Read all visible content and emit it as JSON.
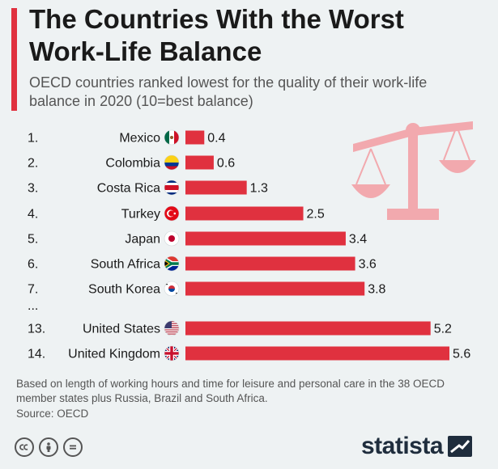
{
  "header": {
    "title": "The Countries With the Worst Work-Life Balance",
    "subtitle": "OECD countries ranked lowest for the quality of their work-life balance in 2020 (10=best balance)"
  },
  "colors": {
    "accent": "#e0313f",
    "bar": "#e0313f",
    "scale_icon": "#f2a9ae",
    "brand": "#1f2d3d"
  },
  "chart_data": {
    "type": "bar",
    "orientation": "horizontal",
    "title": "The Countries With the Worst Work-Life Balance",
    "subtitle": "OECD countries ranked lowest for the quality of their work-life balance in 2020 (10=best balance)",
    "xlim": [
      0,
      5.6
    ],
    "gap_label": "...",
    "rows": [
      {
        "rank": "1.",
        "country": "Mexico",
        "flag": "mexico-flag",
        "value": 0.4,
        "label": "0.4"
      },
      {
        "rank": "2.",
        "country": "Colombia",
        "flag": "colombia-flag",
        "value": 0.6,
        "label": "0.6"
      },
      {
        "rank": "3.",
        "country": "Costa Rica",
        "flag": "costa-rica-flag",
        "value": 1.3,
        "label": "1.3"
      },
      {
        "rank": "4.",
        "country": "Turkey",
        "flag": "turkey-flag",
        "value": 2.5,
        "label": "2.5"
      },
      {
        "rank": "5.",
        "country": "Japan",
        "flag": "japan-flag",
        "value": 3.4,
        "label": "3.4"
      },
      {
        "rank": "6.",
        "country": "South Africa",
        "flag": "south-africa-flag",
        "value": 3.6,
        "label": "3.6"
      },
      {
        "rank": "7.",
        "country": "South Korea",
        "flag": "south-korea-flag",
        "value": 3.8,
        "label": "3.8"
      },
      {
        "rank": "13.",
        "country": "United States",
        "flag": "united-states-flag",
        "value": 5.2,
        "label": "5.2"
      },
      {
        "rank": "14.",
        "country": "United Kingdom",
        "flag": "united-kingdom-flag",
        "value": 5.6,
        "label": "5.6"
      }
    ],
    "decoration_icon": "balance-scale-icon"
  },
  "footer": {
    "note": "Based on length of working hours and time for leisure and personal care in the 38 OECD member states plus Russia, Brazil and South Africa.",
    "source": "Source: OECD",
    "license_icons": [
      "cc-icon",
      "by-icon",
      "nd-icon"
    ],
    "brand": "statista",
    "brand_icon": "statista-logo-icon"
  }
}
